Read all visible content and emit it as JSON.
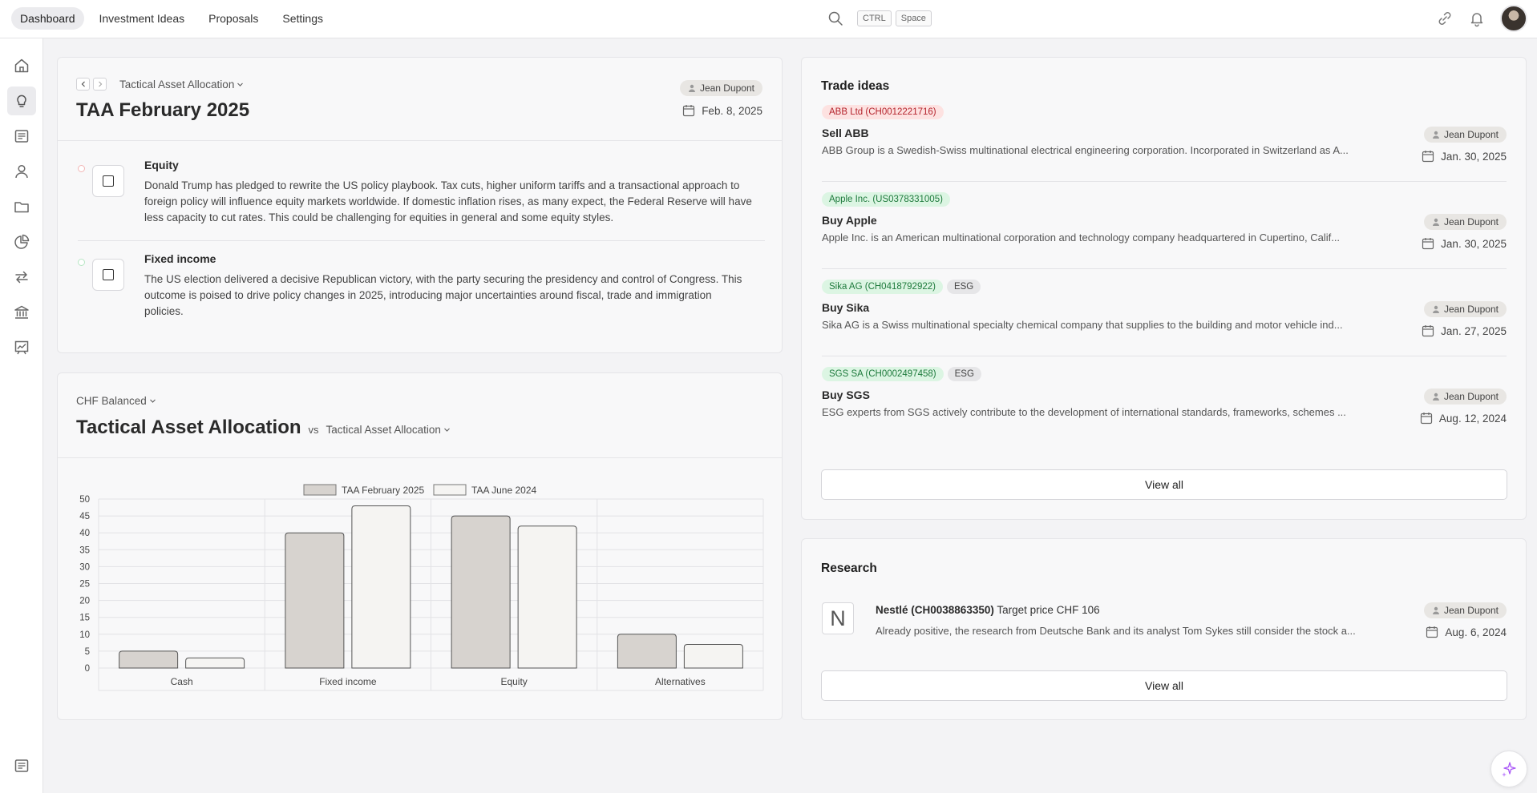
{
  "nav": {
    "items": [
      {
        "label": "Dashboard",
        "active": true
      },
      {
        "label": "Investment Ideas",
        "active": false
      },
      {
        "label": "Proposals",
        "active": false
      },
      {
        "label": "Settings",
        "active": false
      }
    ]
  },
  "search": {
    "kbd1": "CTRL",
    "kbd2": "Space"
  },
  "taa_card": {
    "breadcrumb": "Tactical Asset Allocation",
    "title": "TAA February 2025",
    "author": "Jean Dupont",
    "date": "Feb. 8, 2025",
    "items": [
      {
        "title": "Equity",
        "text": "Donald Trump has pledged to rewrite the US policy playbook. Tax cuts, higher uniform tariffs and a transactional approach to foreign policy will influence equity markets worldwide. If domestic inflation rises, as many expect, the Federal Reserve will have less capacity to cut rates. This could be challenging for equities in general and some equity styles.",
        "dot_color": "#f2b6b6"
      },
      {
        "title": "Fixed income",
        "text": "The US election delivered a decisive Republican victory, with the party securing the presidency and control of Congress. This outcome is poised to drive policy changes in 2025, introducing major uncertainties around fiscal, trade and immigration policies.",
        "dot_color": "#b7e6c4"
      }
    ]
  },
  "chart_card": {
    "portfolio": "CHF Balanced",
    "title": "Tactical Asset Allocation",
    "vs": "vs",
    "compare": "Tactical Asset Allocation"
  },
  "chart_data": {
    "type": "bar",
    "categories": [
      "Cash",
      "Fixed income",
      "Equity",
      "Alternatives"
    ],
    "series": [
      {
        "name": "TAA February 2025",
        "values": [
          5,
          40,
          45,
          10
        ],
        "fill": "#d7d3cf"
      },
      {
        "name": "TAA June 2024",
        "values": [
          3,
          48,
          42,
          7
        ],
        "fill": "#f5f4f2"
      }
    ],
    "ylim": [
      0,
      50
    ],
    "yticks": [
      0,
      5,
      10,
      15,
      20,
      25,
      30,
      35,
      40,
      45,
      50
    ],
    "legend": "top",
    "grid": true
  },
  "trade_ideas": {
    "title": "Trade ideas",
    "view_all": "View all",
    "items": [
      {
        "tags": [
          {
            "text": "ABB Ltd (CH0012221716)",
            "kind": "red"
          }
        ],
        "title": "Sell ABB",
        "desc": "ABB Group is a Swedish-Swiss multinational electrical engineering corporation. Incorporated in Switzerland as A...",
        "author": "Jean Dupont",
        "date": "Jan. 30, 2025"
      },
      {
        "tags": [
          {
            "text": "Apple Inc. (US0378331005)",
            "kind": "green"
          }
        ],
        "title": "Buy Apple",
        "desc": "Apple Inc. is an American multinational corporation and technology company headquartered in Cupertino, Calif...",
        "author": "Jean Dupont",
        "date": "Jan. 30, 2025"
      },
      {
        "tags": [
          {
            "text": "Sika AG (CH0418792922)",
            "kind": "green"
          },
          {
            "text": "ESG",
            "kind": "grey"
          }
        ],
        "title": "Buy Sika",
        "desc": "Sika AG is a Swiss multinational specialty chemical company that supplies to the building and motor vehicle ind...",
        "author": "Jean Dupont",
        "date": "Jan. 27, 2025"
      },
      {
        "tags": [
          {
            "text": "SGS SA (CH0002497458)",
            "kind": "green"
          },
          {
            "text": "ESG",
            "kind": "grey"
          }
        ],
        "title": "Buy SGS",
        "desc": "ESG experts from SGS actively contribute to the development of international standards, frameworks, schemes ...",
        "author": "Jean Dupont",
        "date": "Aug. 12, 2024"
      }
    ]
  },
  "research": {
    "title": "Research",
    "view_all": "View all",
    "item": {
      "initial": "N",
      "name": "Nestlé (CH0038863350)",
      "subtitle": "Target price CHF 106",
      "desc": "Already positive, the research from Deutsche Bank and its analyst Tom Sykes still consider the stock a...",
      "author": "Jean Dupont",
      "date": "Aug. 6, 2024"
    }
  }
}
